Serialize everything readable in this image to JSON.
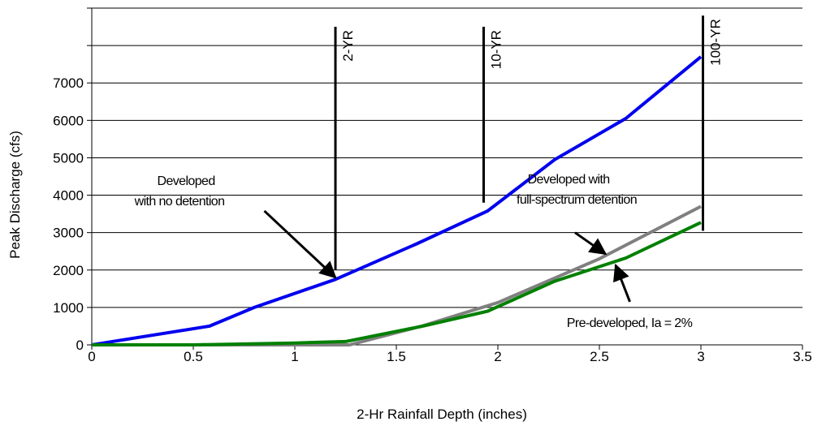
{
  "chart_data": {
    "type": "line",
    "xlabel": "2-Hr Rainfall Depth (inches)",
    "ylabel": "Peak Discharge (cfs)",
    "xlim": [
      0,
      3.5
    ],
    "ylim": [
      0,
      9000
    ],
    "xticks": [
      0,
      0.5,
      1,
      1.5,
      2,
      2.5,
      3,
      3.5
    ],
    "xtick_labels": [
      "0",
      "0.5",
      "1",
      "1.5",
      "2",
      "2.5",
      "3",
      "3.5"
    ],
    "yticks": [
      0,
      1000,
      2000,
      3000,
      4000,
      5000,
      6000,
      7000,
      8000,
      9000
    ],
    "ytick_labels": [
      "0",
      "1000",
      "2000",
      "3000",
      "4000",
      "5000",
      "6000",
      "7000",
      "",
      ""
    ],
    "grid": "horizontal",
    "legend": "none",
    "series": [
      {
        "color": "#0000ee",
        "x": [
          0,
          0.58,
          0.8,
          1.2,
          1.6,
          1.95,
          2.28,
          2.63,
          3.0
        ],
        "y": [
          0,
          500,
          1000,
          1750,
          2700,
          3580,
          4950,
          6050,
          7700
        ]
      },
      {
        "color": "#808080",
        "x": [
          0,
          1.27,
          1.63,
          2.0,
          2.5,
          3.0
        ],
        "y": [
          0,
          0,
          510,
          1130,
          2300,
          3700
        ]
      },
      {
        "color": "#008000",
        "x": [
          0,
          0.5,
          1.0,
          1.25,
          1.63,
          1.95,
          2.28,
          2.63,
          3.0
        ],
        "y": [
          0,
          0,
          50,
          90,
          500,
          900,
          1700,
          2320,
          3270
        ]
      }
    ],
    "event_lines": [
      {
        "label": "2-YR",
        "x": 1.2,
        "y_bottom": 2000,
        "y_top": 8500
      },
      {
        "label": "10-YR",
        "x": 1.93,
        "y_bottom": 3800,
        "y_top": 8500
      },
      {
        "label": "100-YR",
        "x": 3.01,
        "y_bottom": 3050,
        "y_top": 8800
      }
    ],
    "annotations": [
      {
        "lines": [
          "Developed",
          "with no detention"
        ],
        "arrow_from": [
          0.85,
          3580
        ],
        "arrow_to": [
          1.2,
          1800
        ]
      },
      {
        "lines": [
          "Developed with",
          "full-spectrum detention"
        ],
        "arrow_from": [
          2.38,
          3000
        ],
        "arrow_to": [
          2.53,
          2430
        ]
      },
      {
        "lines": [
          "Pre-developed, Ia = 2%"
        ],
        "arrow_from": [
          2.65,
          1150
        ],
        "arrow_to": [
          2.58,
          2130
        ]
      }
    ]
  }
}
